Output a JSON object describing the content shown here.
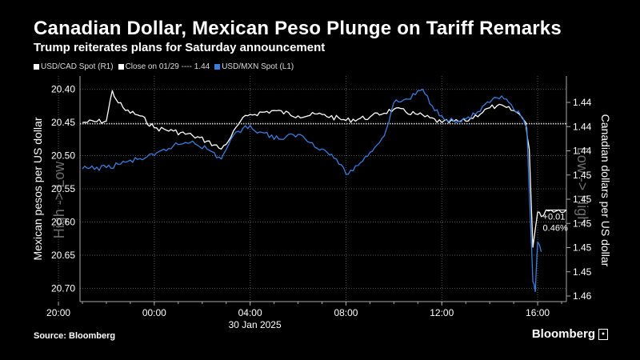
{
  "colors": {
    "background": "#000000",
    "usdcad": "#ffffff",
    "usdmxn": "#3b7ddd",
    "close_line": "#ffffff",
    "axis": "#aaaaaa",
    "watermark": "#6e6e6e"
  },
  "footer": {
    "source": "Source: Bloomberg",
    "brand": "Bloomberg"
  },
  "chart_data": {
    "type": "line",
    "title": "Canadian Dollar, Mexican Peso Plunge on Tariff Remarks",
    "subtitle": "Trump reiterates plans for Saturday announcement",
    "legend": {
      "placement": "top-left",
      "items": [
        "USD/CAD Spot (R1)",
        "Close on 01/29 ---- 1.44",
        "USD/MXN Spot (L1)"
      ]
    },
    "xaxis": {
      "ticks": [
        "20:00",
        "00:00",
        "04:00",
        "08:00",
        "12:00",
        "16:00"
      ],
      "date_label": "30 Jan 2025",
      "range_hours": [
        -3.1,
        17.2
      ]
    },
    "yaxis_left": {
      "label": "Mexican pesos per US dollar",
      "range": [
        20.72,
        20.38
      ],
      "inverted": true,
      "ticks": [
        "20.40",
        "20.45",
        "20.50",
        "20.55",
        "20.60",
        "20.65",
        "20.70"
      ],
      "watermark": "High -> Low"
    },
    "yaxis_right": {
      "label": "Canadian dollars per US dollar",
      "ticks": [
        "1.44",
        "1.44",
        "1.44",
        "1.45",
        "1.45",
        "1.45",
        "1.45",
        "1.45",
        "1.46"
      ],
      "watermark": "Low -> High"
    },
    "reference_line": {
      "label": "Close on 01/29",
      "value": 20.452
    },
    "annotation": {
      "change": "+0.01",
      "percent": "0.46%"
    },
    "series": [
      {
        "name": "USD/CAD Spot (R1)",
        "axis": "right",
        "x": [
          -3,
          -2,
          -1.75,
          -1.6,
          -1.2,
          -0.6,
          0,
          0.8,
          1.6,
          2.2,
          2.8,
          3.2,
          3.6,
          4,
          5,
          6,
          7,
          8,
          9,
          10,
          11,
          12,
          13,
          14,
          14.3,
          15,
          15.3,
          15.5,
          15.65,
          15.8,
          16,
          16.15,
          16.35,
          17.2
        ],
        "y": [
          20.45,
          20.448,
          20.402,
          20.415,
          20.432,
          20.44,
          20.458,
          20.463,
          20.47,
          20.478,
          20.49,
          20.472,
          20.448,
          20.438,
          20.432,
          20.44,
          20.438,
          20.447,
          20.442,
          20.43,
          20.438,
          20.45,
          20.448,
          20.428,
          20.425,
          20.432,
          20.44,
          20.45,
          20.49,
          20.638,
          20.585,
          20.592,
          20.582,
          20.582
        ]
      },
      {
        "name": "USD/MXN Spot (L1)",
        "axis": "left",
        "x": [
          -3,
          -2,
          -1.2,
          0,
          0.8,
          1.6,
          2.2,
          2.8,
          3.2,
          3.8,
          4.5,
          5.2,
          6,
          7,
          7.6,
          8,
          8.5,
          9,
          9.6,
          10,
          10.6,
          11.2,
          11.6,
          12,
          12.6,
          13.4,
          14,
          14.5,
          15,
          15.3,
          15.55,
          15.7,
          15.8,
          15.9,
          16,
          16.15
        ],
        "y": [
          20.52,
          20.518,
          20.51,
          20.5,
          20.485,
          20.478,
          20.49,
          20.505,
          20.475,
          20.455,
          20.465,
          20.475,
          20.468,
          20.49,
          20.505,
          20.528,
          20.515,
          20.495,
          20.47,
          20.42,
          20.415,
          20.4,
          20.425,
          20.44,
          20.45,
          20.438,
          20.42,
          20.41,
          20.43,
          20.44,
          20.458,
          20.6,
          20.69,
          20.705,
          20.63,
          20.645
        ]
      }
    ]
  }
}
